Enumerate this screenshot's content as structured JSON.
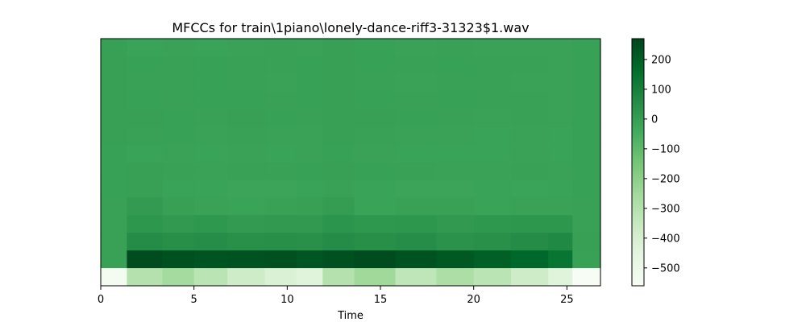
{
  "chart_data": {
    "type": "heatmap",
    "title": "MFCCs for train\\1piano\\lonely-dance-riff3-31323$1.wav",
    "xlabel": "Time",
    "ylabel": "",
    "xlim": [
      0,
      26.8
    ],
    "x_ticks": [
      0,
      5,
      10,
      15,
      20,
      25
    ],
    "x_tick_labels": [
      "0",
      "5",
      "10",
      "15",
      "20",
      "25"
    ],
    "y_axis_ticks_visible": false,
    "n_coefficients": 14,
    "colormap": "Greens",
    "color_range": [
      -560,
      270
    ],
    "colorbar_ticks": [
      200,
      100,
      0,
      -100,
      -200,
      -300,
      -400,
      -500
    ],
    "colorbar_tick_labels": [
      "200",
      "100",
      "0",
      "−100",
      "−200",
      "−300",
      "−400",
      "−500"
    ],
    "time_segments": [
      0,
      1.4,
      3.3,
      5.0,
      6.8,
      8.8,
      10.5,
      11.9,
      13.6,
      15.8,
      18.0,
      20.0,
      22.0,
      24.0,
      25.3,
      26.8
    ],
    "rows_top_to_bottom": [
      [
        -5,
        -15,
        -12,
        -15,
        -12,
        -10,
        -12,
        -5,
        -8,
        -12,
        -10,
        -12,
        -12,
        -12,
        -8
      ],
      [
        -5,
        -8,
        -10,
        -8,
        -10,
        -10,
        -8,
        -5,
        -8,
        -10,
        -8,
        -10,
        -10,
        -12,
        -8
      ],
      [
        -5,
        -10,
        -10,
        -8,
        -10,
        -12,
        -8,
        -5,
        -10,
        -12,
        -10,
        -10,
        -12,
        -12,
        -8
      ],
      [
        -5,
        -8,
        -10,
        -8,
        -8,
        -10,
        -8,
        -5,
        -8,
        -10,
        -8,
        -10,
        -10,
        -12,
        -8
      ],
      [
        -5,
        -5,
        -8,
        -10,
        -5,
        -8,
        -10,
        -5,
        -5,
        -8,
        -10,
        -12,
        -10,
        -12,
        -8
      ],
      [
        -5,
        -10,
        -8,
        -12,
        -10,
        -12,
        -12,
        -5,
        -10,
        -12,
        -12,
        -15,
        -12,
        -14,
        -8
      ],
      [
        -8,
        -15,
        -12,
        -15,
        -12,
        -15,
        -12,
        -8,
        -12,
        -15,
        -15,
        -15,
        -12,
        -15,
        -8
      ],
      [
        -8,
        -5,
        -10,
        -12,
        -10,
        -10,
        -8,
        -5,
        -8,
        -10,
        -12,
        -12,
        -10,
        -12,
        -8
      ],
      [
        -8,
        -5,
        -15,
        -15,
        -20,
        -20,
        -15,
        -10,
        -15,
        -20,
        -20,
        -15,
        -18,
        -15,
        -8
      ],
      [
        -10,
        10,
        -5,
        -12,
        -15,
        -10,
        -5,
        5,
        -15,
        -10,
        -10,
        -15,
        -12,
        -12,
        -10
      ],
      [
        -10,
        25,
        15,
        20,
        10,
        15,
        15,
        30,
        20,
        25,
        15,
        20,
        25,
        25,
        -10
      ],
      [
        -10,
        60,
        50,
        55,
        45,
        50,
        45,
        60,
        50,
        55,
        40,
        45,
        60,
        70,
        -5
      ],
      [
        -10,
        250,
        240,
        230,
        235,
        240,
        225,
        240,
        250,
        235,
        220,
        200,
        180,
        140,
        -10
      ],
      [
        -540,
        -300,
        -260,
        -320,
        -380,
        -420,
        -440,
        -300,
        -250,
        -330,
        -280,
        -320,
        -380,
        -440,
        -560
      ]
    ]
  }
}
